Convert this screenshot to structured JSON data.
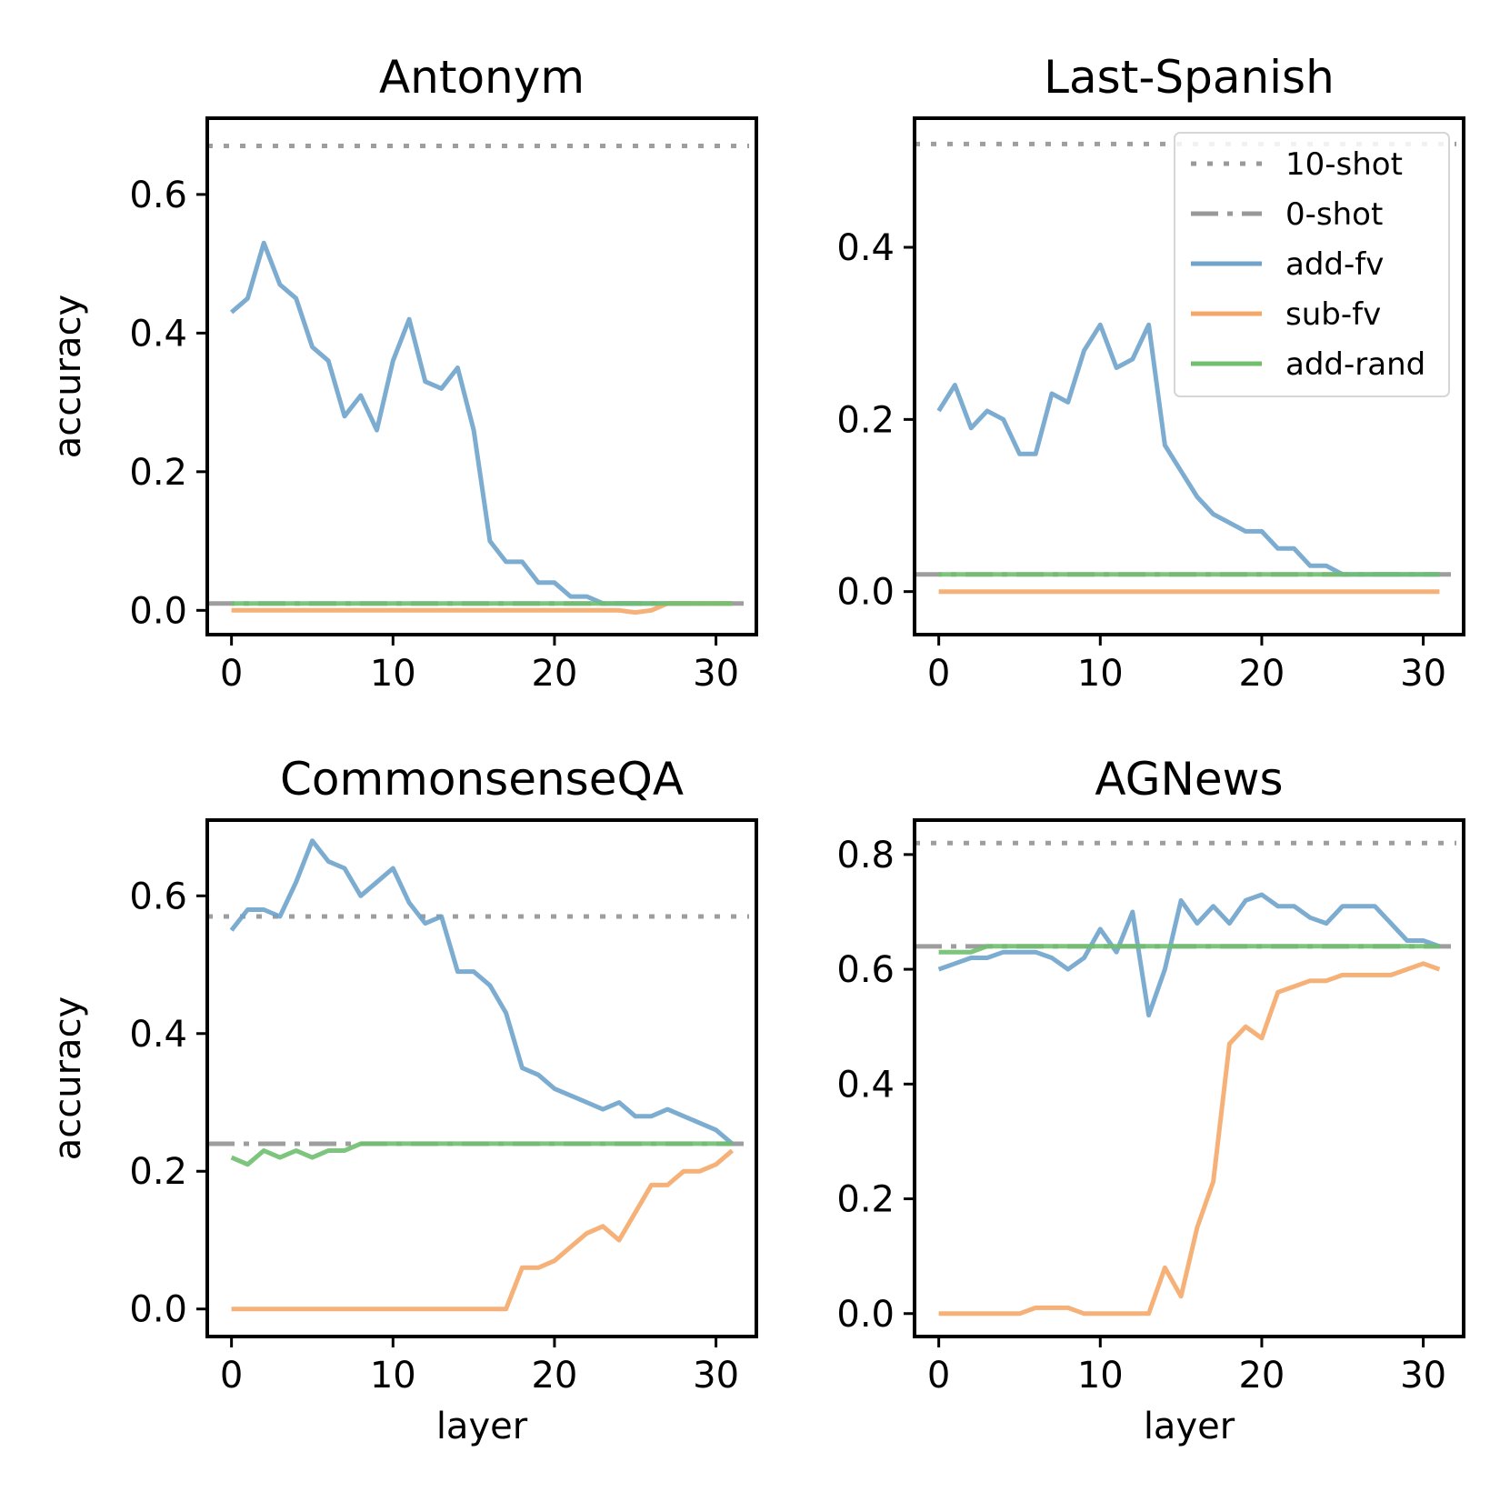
{
  "chart_data": [
    {
      "type": "line",
      "title": "Antonym",
      "xlabel": "",
      "ylabel": "accuracy",
      "xlim": [
        -1.5,
        32.5
      ],
      "ylim": [
        -0.035,
        0.71
      ],
      "xticks": [
        0,
        10,
        20,
        30
      ],
      "xtick_labels": [
        "0",
        "10",
        "20",
        "30"
      ],
      "yticks": [
        0.0,
        0.2,
        0.4,
        0.6
      ],
      "ytick_labels": [
        "0.0",
        "0.2",
        "0.4",
        "0.6"
      ],
      "grid": false,
      "x": [
        0,
        1,
        2,
        3,
        4,
        5,
        6,
        7,
        8,
        9,
        10,
        11,
        12,
        13,
        14,
        15,
        16,
        17,
        18,
        19,
        20,
        21,
        22,
        23,
        24,
        25,
        26,
        27,
        28,
        29,
        30,
        31
      ],
      "hlines": [
        {
          "name": "10-shot",
          "value": 0.67
        },
        {
          "name": "0-shot",
          "value": 0.01
        }
      ],
      "series": [
        {
          "name": "add-fv",
          "values": [
            0.43,
            0.45,
            0.53,
            0.47,
            0.45,
            0.38,
            0.36,
            0.28,
            0.31,
            0.26,
            0.36,
            0.42,
            0.33,
            0.32,
            0.35,
            0.26,
            0.1,
            0.07,
            0.07,
            0.04,
            0.04,
            0.02,
            0.02,
            0.01,
            0.01,
            0.01,
            0.01,
            0.01,
            0.01,
            0.01,
            0.01,
            0.01
          ]
        },
        {
          "name": "sub-fv",
          "values": [
            0,
            0,
            0,
            0,
            0,
            0,
            0,
            0,
            0,
            0,
            0,
            0,
            0,
            0,
            0,
            0,
            0,
            0,
            0,
            0,
            0,
            0,
            0,
            0,
            0,
            -0.003,
            0,
            0.01,
            0.01,
            0.01,
            0.01,
            0.01
          ]
        },
        {
          "name": "add-rand",
          "values": [
            0.01,
            0.01,
            0.01,
            0.01,
            0.01,
            0.01,
            0.01,
            0.01,
            0.01,
            0.01,
            0.01,
            0.01,
            0.01,
            0.01,
            0.01,
            0.01,
            0.01,
            0.01,
            0.01,
            0.01,
            0.01,
            0.01,
            0.01,
            0.01,
            0.01,
            0.01,
            0.01,
            0.01,
            0.01,
            0.01,
            0.01,
            0.01
          ]
        }
      ],
      "legend": null
    },
    {
      "type": "line",
      "title": "Last-Spanish",
      "xlabel": "",
      "ylabel": "",
      "xlim": [
        -1.5,
        32.5
      ],
      "ylim": [
        -0.05,
        0.55
      ],
      "xticks": [
        0,
        10,
        20,
        30
      ],
      "xtick_labels": [
        "0",
        "10",
        "20",
        "30"
      ],
      "yticks": [
        0.0,
        0.2,
        0.4
      ],
      "ytick_labels": [
        "0.0",
        "0.2",
        "0.4"
      ],
      "grid": false,
      "x": [
        0,
        1,
        2,
        3,
        4,
        5,
        6,
        7,
        8,
        9,
        10,
        11,
        12,
        13,
        14,
        15,
        16,
        17,
        18,
        19,
        20,
        21,
        22,
        23,
        24,
        25,
        26,
        27,
        28,
        29,
        30,
        31
      ],
      "hlines": [
        {
          "name": "10-shot",
          "value": 0.52
        },
        {
          "name": "0-shot",
          "value": 0.02
        }
      ],
      "series": [
        {
          "name": "add-fv",
          "values": [
            0.21,
            0.24,
            0.19,
            0.21,
            0.2,
            0.16,
            0.16,
            0.23,
            0.22,
            0.28,
            0.31,
            0.26,
            0.27,
            0.31,
            0.17,
            0.14,
            0.11,
            0.09,
            0.08,
            0.07,
            0.07,
            0.05,
            0.05,
            0.03,
            0.03,
            0.02,
            0.02,
            0.02,
            0.02,
            0.02,
            0.02,
            0.02
          ]
        },
        {
          "name": "sub-fv",
          "values": [
            0,
            0,
            0,
            0,
            0,
            0,
            0,
            0,
            0,
            0,
            0,
            0,
            0,
            0,
            0,
            0,
            0,
            0,
            0,
            0,
            0,
            0,
            0,
            0,
            0,
            0,
            0,
            0,
            0,
            0,
            0,
            0
          ]
        },
        {
          "name": "add-rand",
          "values": [
            0.02,
            0.02,
            0.02,
            0.02,
            0.02,
            0.02,
            0.02,
            0.02,
            0.02,
            0.02,
            0.02,
            0.02,
            0.02,
            0.02,
            0.02,
            0.02,
            0.02,
            0.02,
            0.02,
            0.02,
            0.02,
            0.02,
            0.02,
            0.02,
            0.02,
            0.02,
            0.02,
            0.02,
            0.02,
            0.02,
            0.02,
            0.02
          ]
        }
      ],
      "legend": {
        "position": "upper-right",
        "entries": [
          {
            "name": "10-shot",
            "style": "dotted",
            "color": "#999999"
          },
          {
            "name": "0-shot",
            "style": "dashdot",
            "color": "#999999"
          },
          {
            "name": "add-fv",
            "style": "solid",
            "color": "#6fa3cc"
          },
          {
            "name": "sub-fv",
            "style": "solid",
            "color": "#f4a868"
          },
          {
            "name": "add-rand",
            "style": "solid",
            "color": "#6fbf6f"
          }
        ]
      }
    },
    {
      "type": "line",
      "title": "CommonsenseQA",
      "xlabel": "layer",
      "ylabel": "accuracy",
      "xlim": [
        -1.5,
        32.5
      ],
      "ylim": [
        -0.04,
        0.71
      ],
      "xticks": [
        0,
        10,
        20,
        30
      ],
      "xtick_labels": [
        "0",
        "10",
        "20",
        "30"
      ],
      "yticks": [
        0.0,
        0.2,
        0.4,
        0.6
      ],
      "ytick_labels": [
        "0.0",
        "0.2",
        "0.4",
        "0.6"
      ],
      "grid": false,
      "x": [
        0,
        1,
        2,
        3,
        4,
        5,
        6,
        7,
        8,
        9,
        10,
        11,
        12,
        13,
        14,
        15,
        16,
        17,
        18,
        19,
        20,
        21,
        22,
        23,
        24,
        25,
        26,
        27,
        28,
        29,
        30,
        31
      ],
      "hlines": [
        {
          "name": "10-shot",
          "value": 0.57
        },
        {
          "name": "0-shot",
          "value": 0.24
        }
      ],
      "series": [
        {
          "name": "add-fv",
          "values": [
            0.55,
            0.58,
            0.58,
            0.57,
            0.62,
            0.68,
            0.65,
            0.64,
            0.6,
            0.62,
            0.64,
            0.59,
            0.56,
            0.57,
            0.49,
            0.49,
            0.47,
            0.43,
            0.35,
            0.34,
            0.32,
            0.31,
            0.3,
            0.29,
            0.3,
            0.28,
            0.28,
            0.29,
            0.28,
            0.27,
            0.26,
            0.24
          ]
        },
        {
          "name": "sub-fv",
          "values": [
            0,
            0,
            0,
            0,
            0,
            0,
            0,
            0,
            0,
            0,
            0,
            0,
            0,
            0,
            0,
            0,
            0,
            0,
            0.06,
            0.06,
            0.07,
            0.09,
            0.11,
            0.12,
            0.1,
            0.14,
            0.18,
            0.18,
            0.2,
            0.2,
            0.21,
            0.23
          ]
        },
        {
          "name": "add-rand",
          "values": [
            0.22,
            0.21,
            0.23,
            0.22,
            0.23,
            0.22,
            0.23,
            0.23,
            0.24,
            0.24,
            0.24,
            0.24,
            0.24,
            0.24,
            0.24,
            0.24,
            0.24,
            0.24,
            0.24,
            0.24,
            0.24,
            0.24,
            0.24,
            0.24,
            0.24,
            0.24,
            0.24,
            0.24,
            0.24,
            0.24,
            0.24,
            0.24
          ]
        }
      ],
      "legend": null
    },
    {
      "type": "line",
      "title": "AGNews",
      "xlabel": "layer",
      "ylabel": "",
      "xlim": [
        -1.5,
        32.5
      ],
      "ylim": [
        -0.04,
        0.86
      ],
      "xticks": [
        0,
        10,
        20,
        30
      ],
      "xtick_labels": [
        "0",
        "10",
        "20",
        "30"
      ],
      "yticks": [
        0.0,
        0.2,
        0.4,
        0.6,
        0.8
      ],
      "ytick_labels": [
        "0.0",
        "0.2",
        "0.4",
        "0.6",
        "0.8"
      ],
      "grid": false,
      "x": [
        0,
        1,
        2,
        3,
        4,
        5,
        6,
        7,
        8,
        9,
        10,
        11,
        12,
        13,
        14,
        15,
        16,
        17,
        18,
        19,
        20,
        21,
        22,
        23,
        24,
        25,
        26,
        27,
        28,
        29,
        30,
        31
      ],
      "hlines": [
        {
          "name": "10-shot",
          "value": 0.82
        },
        {
          "name": "0-shot",
          "value": 0.64
        }
      ],
      "series": [
        {
          "name": "add-fv",
          "values": [
            0.6,
            0.61,
            0.62,
            0.62,
            0.63,
            0.63,
            0.63,
            0.62,
            0.6,
            0.62,
            0.67,
            0.63,
            0.7,
            0.52,
            0.6,
            0.72,
            0.68,
            0.71,
            0.68,
            0.72,
            0.73,
            0.71,
            0.71,
            0.69,
            0.68,
            0.71,
            0.71,
            0.71,
            0.68,
            0.65,
            0.65,
            0.64
          ]
        },
        {
          "name": "sub-fv",
          "values": [
            0,
            0,
            0,
            0,
            0,
            0,
            0.01,
            0.01,
            0.01,
            0,
            0,
            0,
            0,
            0,
            0.08,
            0.03,
            0.15,
            0.23,
            0.47,
            0.5,
            0.48,
            0.56,
            0.57,
            0.58,
            0.58,
            0.59,
            0.59,
            0.59,
            0.59,
            0.6,
            0.61,
            0.6
          ]
        },
        {
          "name": "add-rand",
          "values": [
            0.63,
            0.63,
            0.63,
            0.64,
            0.64,
            0.64,
            0.64,
            0.64,
            0.64,
            0.64,
            0.64,
            0.64,
            0.64,
            0.64,
            0.64,
            0.64,
            0.64,
            0.64,
            0.64,
            0.64,
            0.64,
            0.64,
            0.64,
            0.64,
            0.64,
            0.64,
            0.64,
            0.64,
            0.64,
            0.64,
            0.64,
            0.64
          ]
        }
      ],
      "legend": null
    }
  ],
  "colors": {
    "add-fv": "#6fa3cc",
    "sub-fv": "#f4a868",
    "add-rand": "#6fbf6f",
    "10-shot": "#999999",
    "0-shot": "#999999",
    "axes": "#000000"
  }
}
